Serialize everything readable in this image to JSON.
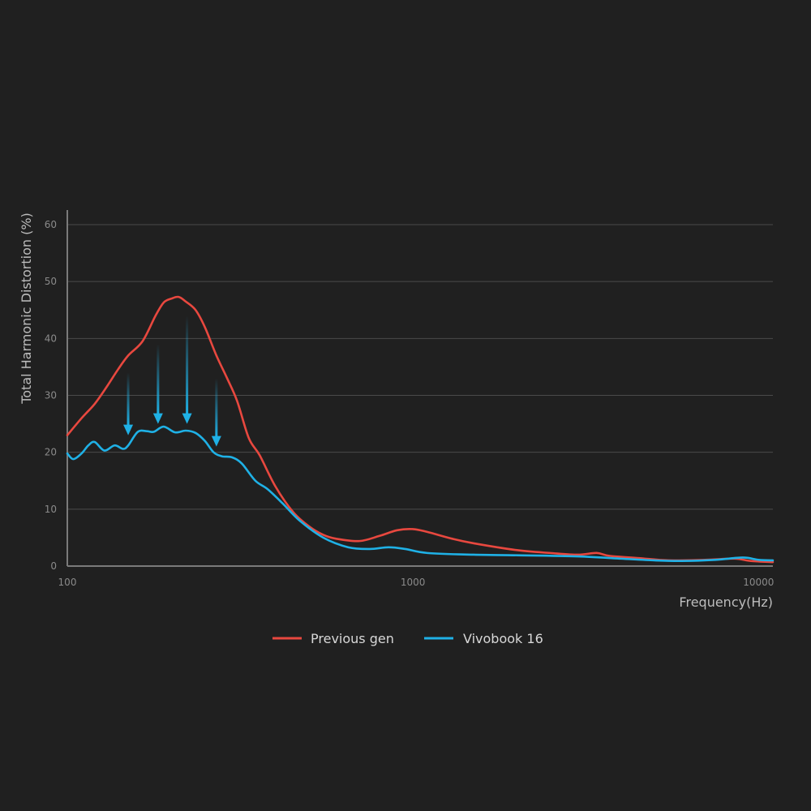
{
  "chart_data": {
    "type": "line",
    "title": "",
    "xlabel": "Frequency(Hz)",
    "ylabel": "Total Harmonic Distortion (%)",
    "x_scale": "log",
    "xlim": [
      100,
      11000
    ],
    "ylim": [
      0,
      60
    ],
    "x_ticks": [
      100,
      1000,
      10000
    ],
    "x_tick_labels": [
      "100",
      "1000",
      "10000"
    ],
    "y_ticks": [
      0,
      10,
      20,
      30,
      40,
      50,
      60
    ],
    "y_tick_labels": [
      "0",
      "10",
      "20",
      "30",
      "40",
      "50",
      "60"
    ],
    "grid": "horizontal",
    "legend_position": "bottom-center",
    "colors": {
      "background": "#202020",
      "grid": "#4a4a4a",
      "axis": "#7a7a7a",
      "previous_gen": "#e8483f",
      "vivobook": "#1fb1e6"
    },
    "series": [
      {
        "name": "Previous gen",
        "color": "#e8483f",
        "points": [
          [
            100,
            23.0
          ],
          [
            110,
            26.0
          ],
          [
            120,
            28.5
          ],
          [
            130,
            31.5
          ],
          [
            140,
            34.5
          ],
          [
            150,
            37.0
          ],
          [
            165,
            39.5
          ],
          [
            180,
            44.0
          ],
          [
            190,
            46.3
          ],
          [
            200,
            47.0
          ],
          [
            210,
            47.3
          ],
          [
            220,
            46.5
          ],
          [
            235,
            45.0
          ],
          [
            250,
            42.0
          ],
          [
            270,
            37.0
          ],
          [
            290,
            33.0
          ],
          [
            310,
            29.0
          ],
          [
            335,
            22.5
          ],
          [
            360,
            19.5
          ],
          [
            400,
            14.0
          ],
          [
            450,
            9.5
          ],
          [
            500,
            7.0
          ],
          [
            550,
            5.5
          ],
          [
            600,
            4.8
          ],
          [
            700,
            4.4
          ],
          [
            800,
            5.3
          ],
          [
            900,
            6.3
          ],
          [
            1000,
            6.5
          ],
          [
            1100,
            6.0
          ],
          [
            1300,
            4.8
          ],
          [
            1500,
            4.0
          ],
          [
            2000,
            2.8
          ],
          [
            2500,
            2.3
          ],
          [
            3000,
            2.0
          ],
          [
            3400,
            2.3
          ],
          [
            3700,
            1.8
          ],
          [
            4500,
            1.4
          ],
          [
            5500,
            1.0
          ],
          [
            7000,
            1.1
          ],
          [
            8500,
            1.3
          ],
          [
            9500,
            0.9
          ],
          [
            11000,
            0.7
          ]
        ]
      },
      {
        "name": "Vivobook 16",
        "color": "#1fb1e6",
        "points": [
          [
            100,
            19.8
          ],
          [
            104,
            18.8
          ],
          [
            110,
            19.8
          ],
          [
            115,
            21.2
          ],
          [
            120,
            21.8
          ],
          [
            128,
            20.3
          ],
          [
            137,
            21.2
          ],
          [
            145,
            20.6
          ],
          [
            150,
            21.2
          ],
          [
            160,
            23.6
          ],
          [
            170,
            23.7
          ],
          [
            178,
            23.6
          ],
          [
            190,
            24.5
          ],
          [
            205,
            23.5
          ],
          [
            220,
            23.8
          ],
          [
            235,
            23.4
          ],
          [
            250,
            22.0
          ],
          [
            265,
            20.0
          ],
          [
            280,
            19.3
          ],
          [
            300,
            19.1
          ],
          [
            320,
            18.0
          ],
          [
            350,
            15.0
          ],
          [
            380,
            13.5
          ],
          [
            420,
            11.0
          ],
          [
            470,
            8.0
          ],
          [
            550,
            5.0
          ],
          [
            650,
            3.3
          ],
          [
            750,
            3.0
          ],
          [
            850,
            3.3
          ],
          [
            950,
            3.0
          ],
          [
            1100,
            2.3
          ],
          [
            1500,
            2.0
          ],
          [
            2000,
            1.9
          ],
          [
            3000,
            1.7
          ],
          [
            4000,
            1.3
          ],
          [
            5000,
            1.0
          ],
          [
            6000,
            0.9
          ],
          [
            7500,
            1.1
          ],
          [
            9000,
            1.5
          ],
          [
            10000,
            1.1
          ],
          [
            11000,
            1.0
          ]
        ]
      }
    ],
    "annotations": [
      {
        "type": "arrow",
        "x": 150,
        "y_from": 34,
        "y_to": 23.0
      },
      {
        "type": "arrow",
        "x": 183,
        "y_from": 39,
        "y_to": 25.0
      },
      {
        "type": "arrow",
        "x": 222,
        "y_from": 44,
        "y_to": 25.0
      },
      {
        "type": "arrow",
        "x": 270,
        "y_from": 33,
        "y_to": 21.0
      }
    ]
  }
}
